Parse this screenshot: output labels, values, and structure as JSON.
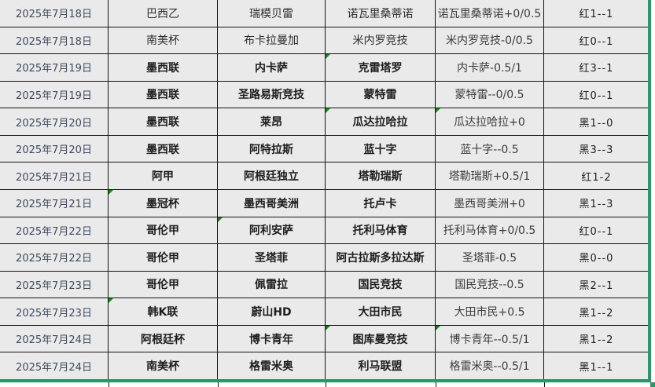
{
  "table": {
    "rows": [
      {
        "date": "2025年7月18日",
        "league": "巴西乙",
        "home_team": "瑞模贝雷",
        "away_team": "诺瓦里桑蒂诺",
        "handicap": "诺瓦里桑蒂诺+0/0.5",
        "result": "红1--1",
        "corner_marks": []
      },
      {
        "date": "2025年7月18日",
        "league": "南美杯",
        "home_team": "布卡拉曼加",
        "away_team": "米内罗竞技",
        "handicap": "米内罗竞技-0/0.5",
        "result": "红0--1",
        "corner_marks": []
      },
      {
        "date": "2025年7月19日",
        "league": "墨西联",
        "home_team": "内卡萨",
        "away_team": "克雷塔罗",
        "handicap": "内卡萨-0.5/1",
        "result": "红3--1",
        "corner_marks": [
          "away_team"
        ]
      },
      {
        "date": "2025年7月19日",
        "league": "墨西联",
        "home_team": "圣路易斯竞技",
        "away_team": "蒙特雷",
        "handicap": "蒙特雷--0/0.5",
        "result": "红0--1",
        "corner_marks": []
      },
      {
        "date": "2025年7月20日",
        "league": "墨西联",
        "home_team": "莱昂",
        "away_team": "瓜达拉哈拉",
        "handicap": "瓜达拉哈拉+0",
        "result": "黑1--0",
        "corner_marks": [
          "away_team",
          "handicap"
        ]
      },
      {
        "date": "2025年7月20日",
        "league": "墨西联",
        "home_team": "阿特拉斯",
        "away_team": "蓝十字",
        "handicap": "蓝十字--0.5",
        "result": "黑3--3",
        "corner_marks": []
      },
      {
        "date": "2025年7月21日",
        "league": "阿甲",
        "home_team": "阿根廷独立",
        "away_team": "塔勒瑞斯",
        "handicap": "塔勒瑞斯+0.5/1",
        "result": "红1-2",
        "corner_marks": []
      },
      {
        "date": "2025年7月21日",
        "league": "墨冠杯",
        "home_team": "墨西哥美洲",
        "away_team": "托卢卡",
        "handicap": "墨西哥美洲+0",
        "result": "黑1--3",
        "corner_marks": [
          "league"
        ]
      },
      {
        "date": "2025年7月22日",
        "league": "哥伦甲",
        "home_team": "阿利安萨",
        "away_team": "托利马体育",
        "handicap": "托利马体育+0/0.5",
        "result": "红0--1",
        "corner_marks": [
          "home_team"
        ]
      },
      {
        "date": "2025年7月22日",
        "league": "哥伦甲",
        "home_team": "圣塔菲",
        "away_team": "阿古拉斯多拉达斯",
        "handicap": "圣塔菲-0.5",
        "result": "黑0--0",
        "corner_marks": []
      },
      {
        "date": "2025年7月23日",
        "league": "哥伦甲",
        "home_team": "佩雷拉",
        "away_team": "国民竞技",
        "handicap": "国民竞技--0.5",
        "result": "黑2--1",
        "corner_marks": []
      },
      {
        "date": "2025年7月23日",
        "league": "韩K联",
        "home_team": "蔚山HD",
        "away_team": "大田市民",
        "handicap": "大田市民+0.5",
        "result": "黑1--2",
        "corner_marks": [
          "league"
        ]
      },
      {
        "date": "2025年7月24日",
        "league": "阿根廷杯",
        "home_team": "博卡青年",
        "away_team": "图库曼竞技",
        "handicap": "博卡青年--0.5/1",
        "result": "黑1--2",
        "corner_marks": [
          "away_team",
          "handicap"
        ]
      },
      {
        "date": "2025年7月24日",
        "league": "南美杯",
        "home_team": "格雷米奥",
        "away_team": "利马联盟",
        "handicap": "格雷米奥--0.5/1",
        "result": "黑1--1",
        "corner_marks": []
      }
    ]
  },
  "colors": {
    "cell_background": "#eaeaea",
    "grid_border": "#141414",
    "date_text": "#3f4a5c",
    "selection_green": "#1f9d62",
    "flag_triangle_green": "#0f8a12"
  }
}
